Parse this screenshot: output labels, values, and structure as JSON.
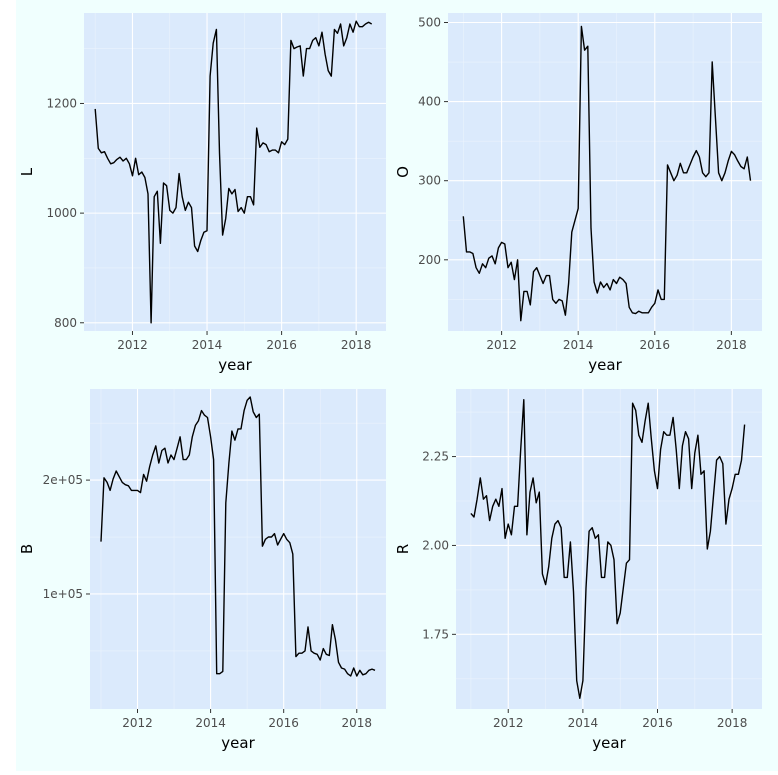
{
  "colors": {
    "figure_background": "#f0fffe",
    "panel_background": "#dbeafc",
    "grid_major": "#ffffff",
    "grid_minor": "#ebf3fd",
    "line": "#000000"
  },
  "chart_data": [
    {
      "type": "line",
      "xlabel": "year",
      "ylabel": "L",
      "grid": true,
      "xlim": [
        2010.7,
        2018.8
      ],
      "ylim": [
        785,
        1365
      ],
      "x_ticks": [
        2012,
        2014,
        2016,
        2018
      ],
      "x_tick_labels": [
        "2012",
        "2014",
        "2016",
        "2018"
      ],
      "y_ticks": [
        800,
        1000,
        1200
      ],
      "y_tick_labels": [
        "800",
        "1000",
        "1200"
      ],
      "x_start": 2011.0,
      "x_step": 0.08333,
      "values": [
        1190,
        1118,
        1110,
        1112,
        1100,
        1090,
        1092,
        1098,
        1102,
        1095,
        1100,
        1090,
        1068,
        1100,
        1070,
        1075,
        1065,
        1035,
        800,
        1030,
        1040,
        945,
        1055,
        1050,
        1005,
        1000,
        1010,
        1072,
        1030,
        1005,
        1020,
        1010,
        940,
        930,
        950,
        965,
        968,
        1250,
        1310,
        1335,
        1110,
        960,
        990,
        1045,
        1035,
        1043,
        1003,
        1010,
        1000,
        1030,
        1030,
        1015,
        1155,
        1120,
        1128,
        1125,
        1112,
        1115,
        1115,
        1110,
        1130,
        1125,
        1135,
        1315,
        1300,
        1303,
        1305,
        1250,
        1300,
        1300,
        1315,
        1320,
        1305,
        1330,
        1290,
        1260,
        1250,
        1335,
        1328,
        1345,
        1305,
        1320,
        1345,
        1330,
        1350,
        1340,
        1340,
        1345,
        1348,
        1345
      ]
    },
    {
      "type": "line",
      "xlabel": "year",
      "ylabel": "O",
      "grid": true,
      "xlim": [
        2010.6,
        2018.8
      ],
      "ylim": [
        110,
        512
      ],
      "x_ticks": [
        2012,
        2014,
        2016,
        2018
      ],
      "x_tick_labels": [
        "2012",
        "2014",
        "2016",
        "2018"
      ],
      "y_ticks": [
        200,
        300,
        400,
        500
      ],
      "y_tick_labels": [
        "200",
        "300",
        "400",
        "500"
      ],
      "x_start": 2011.0,
      "x_step": 0.08333,
      "values": [
        255,
        210,
        210,
        208,
        190,
        183,
        195,
        190,
        202,
        205,
        195,
        215,
        222,
        220,
        190,
        197,
        175,
        200,
        123,
        160,
        160,
        143,
        185,
        190,
        180,
        170,
        180,
        180,
        150,
        145,
        150,
        148,
        130,
        170,
        235,
        250,
        265,
        495,
        465,
        470,
        240,
        172,
        158,
        172,
        165,
        170,
        162,
        175,
        170,
        178,
        175,
        170,
        140,
        133,
        132,
        135,
        133,
        133,
        133,
        140,
        145,
        162,
        150,
        150,
        320,
        310,
        300,
        307,
        322,
        310,
        310,
        320,
        330,
        338,
        330,
        310,
        305,
        310,
        450,
        380,
        310,
        300,
        310,
        325,
        337,
        333,
        325,
        318,
        315,
        330,
        300
      ]
    },
    {
      "type": "line",
      "xlabel": "year",
      "ylabel": "B",
      "grid": true,
      "xlim": [
        2010.7,
        2018.8
      ],
      "ylim": [
        -1000,
        280000
      ],
      "x_ticks": [
        2012,
        2014,
        2016,
        2018
      ],
      "x_tick_labels": [
        "2012",
        "2014",
        "2016",
        "2018"
      ],
      "y_ticks": [
        100000,
        200000
      ],
      "y_tick_labels": [
        "1e+05",
        "2e+05"
      ],
      "x_start": 2011.0,
      "x_step": 0.08333,
      "values": [
        146000,
        202000,
        198000,
        191000,
        201000,
        208000,
        203000,
        198000,
        196000,
        195000,
        191000,
        191000,
        191000,
        189000,
        205000,
        199000,
        212000,
        222000,
        230000,
        215000,
        226000,
        228000,
        215000,
        222000,
        218000,
        228000,
        238000,
        218000,
        218000,
        222000,
        238000,
        248000,
        252000,
        261000,
        257000,
        255000,
        238000,
        218000,
        30000,
        30000,
        32000,
        180000,
        215000,
        243000,
        235000,
        245000,
        245000,
        261000,
        270000,
        273000,
        260000,
        255000,
        258000,
        142000,
        148000,
        150000,
        150000,
        153000,
        143000,
        148000,
        153000,
        148000,
        145000,
        135000,
        45000,
        48000,
        48000,
        50000,
        71000,
        50000,
        48000,
        47000,
        42000,
        52000,
        47000,
        46000,
        73000,
        60000,
        40000,
        35000,
        34000,
        30000,
        28000,
        35000,
        28000,
        33000,
        29000,
        30000,
        33000,
        34000,
        33000
      ]
    },
    {
      "type": "line",
      "xlabel": "year",
      "ylabel": "R",
      "grid": true,
      "xlim": [
        2010.6,
        2018.8
      ],
      "ylim": [
        1.54,
        2.44
      ],
      "x_ticks": [
        2012,
        2014,
        2016,
        2018
      ],
      "x_tick_labels": [
        "2012",
        "2014",
        "2016",
        "2018"
      ],
      "y_ticks": [
        1.75,
        2.0,
        2.25
      ],
      "y_tick_labels": [
        "1.75",
        "2.00",
        "2.25"
      ],
      "x_start": 2011.0,
      "x_step": 0.08333,
      "values": [
        2.09,
        2.08,
        2.13,
        2.19,
        2.13,
        2.14,
        2.07,
        2.11,
        2.13,
        2.11,
        2.16,
        2.02,
        2.06,
        2.03,
        2.11,
        2.11,
        2.27,
        2.41,
        2.03,
        2.15,
        2.19,
        2.12,
        2.15,
        1.92,
        1.89,
        1.94,
        2.02,
        2.06,
        2.07,
        2.05,
        1.91,
        1.91,
        2.01,
        1.87,
        1.62,
        1.57,
        1.62,
        1.88,
        2.04,
        2.05,
        2.02,
        2.03,
        1.91,
        1.91,
        2.01,
        2.0,
        1.96,
        1.78,
        1.81,
        1.88,
        1.95,
        1.96,
        2.4,
        2.38,
        2.31,
        2.29,
        2.35,
        2.4,
        2.3,
        2.21,
        2.16,
        2.27,
        2.32,
        2.31,
        2.31,
        2.36,
        2.27,
        2.16,
        2.28,
        2.32,
        2.3,
        2.16,
        2.26,
        2.31,
        2.2,
        2.21,
        1.99,
        2.04,
        2.14,
        2.24,
        2.25,
        2.23,
        2.06,
        2.13,
        2.16,
        2.2,
        2.2,
        2.24,
        2.34
      ]
    }
  ]
}
